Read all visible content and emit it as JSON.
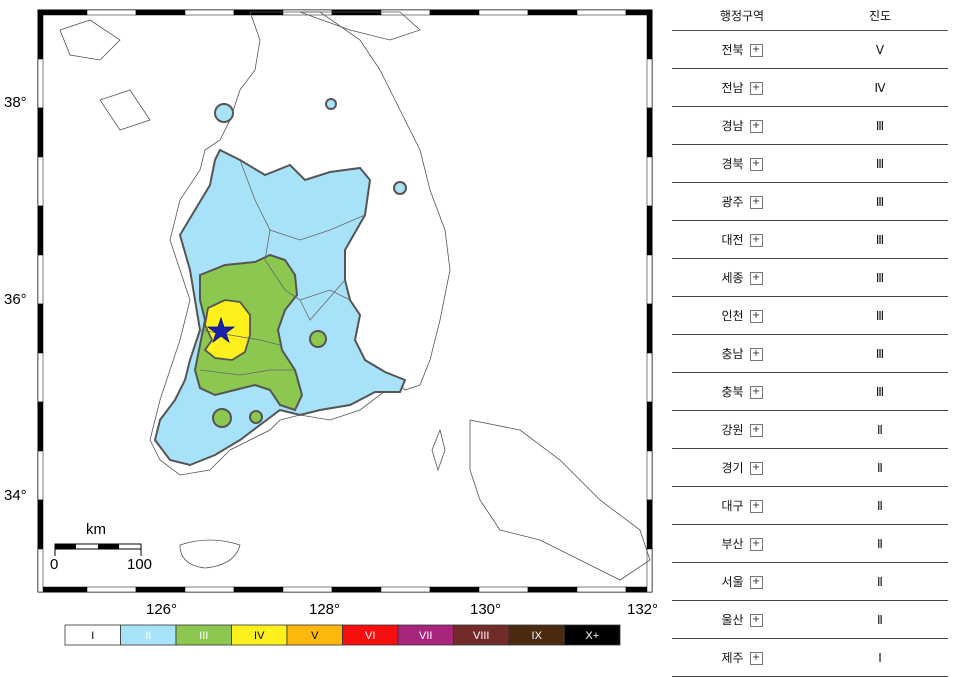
{
  "map": {
    "lat_labels": [
      "38°",
      "36°",
      "34°"
    ],
    "lon_labels": [
      "126°",
      "128°",
      "130°",
      "132°"
    ],
    "scale_bar": {
      "unit": "km",
      "start": "0",
      "end": "100"
    },
    "colors": {
      "ocean": "#ffffff",
      "land": "#ffffff",
      "intensity_II": "#a8e2f8",
      "intensity_III": "#8cc850",
      "intensity_IV": "#fdf01c",
      "epicenter": "#1a22a8"
    },
    "epicenter_icon": "star-icon"
  },
  "legend": {
    "items": [
      {
        "label": "I",
        "color": "#ffffff",
        "text_color": "#000000"
      },
      {
        "label": "II",
        "color": "#a8e2f8",
        "text_color": "#ffffff"
      },
      {
        "label": "III",
        "color": "#8cc850",
        "text_color": "#ffffff"
      },
      {
        "label": "IV",
        "color": "#fdf01c",
        "text_color": "#000000"
      },
      {
        "label": "V",
        "color": "#fdb80d",
        "text_color": "#000000"
      },
      {
        "label": "VI",
        "color": "#f70e0e",
        "text_color": "#ffffff"
      },
      {
        "label": "VII",
        "color": "#a8257e",
        "text_color": "#ffffff"
      },
      {
        "label": "VIII",
        "color": "#722b2b",
        "text_color": "#ffffff"
      },
      {
        "label": "IX",
        "color": "#4c2a0f",
        "text_color": "#ffffff"
      },
      {
        "label": "X+",
        "color": "#000000",
        "text_color": "#ffffff"
      }
    ]
  },
  "table": {
    "headers": {
      "region": "행정구역",
      "intensity": "진도"
    },
    "expand_label": "+",
    "rows": [
      {
        "region": "전북",
        "intensity": "Ⅴ"
      },
      {
        "region": "전남",
        "intensity": "Ⅳ"
      },
      {
        "region": "경남",
        "intensity": "Ⅲ"
      },
      {
        "region": "경북",
        "intensity": "Ⅲ"
      },
      {
        "region": "광주",
        "intensity": "Ⅲ"
      },
      {
        "region": "대전",
        "intensity": "Ⅲ"
      },
      {
        "region": "세종",
        "intensity": "Ⅲ"
      },
      {
        "region": "인천",
        "intensity": "Ⅲ"
      },
      {
        "region": "충남",
        "intensity": "Ⅲ"
      },
      {
        "region": "충북",
        "intensity": "Ⅲ"
      },
      {
        "region": "강원",
        "intensity": "Ⅱ"
      },
      {
        "region": "경기",
        "intensity": "Ⅱ"
      },
      {
        "region": "대구",
        "intensity": "Ⅱ"
      },
      {
        "region": "부산",
        "intensity": "Ⅱ"
      },
      {
        "region": "서울",
        "intensity": "Ⅱ"
      },
      {
        "region": "울산",
        "intensity": "Ⅱ"
      },
      {
        "region": "제주",
        "intensity": "Ⅰ"
      }
    ]
  }
}
